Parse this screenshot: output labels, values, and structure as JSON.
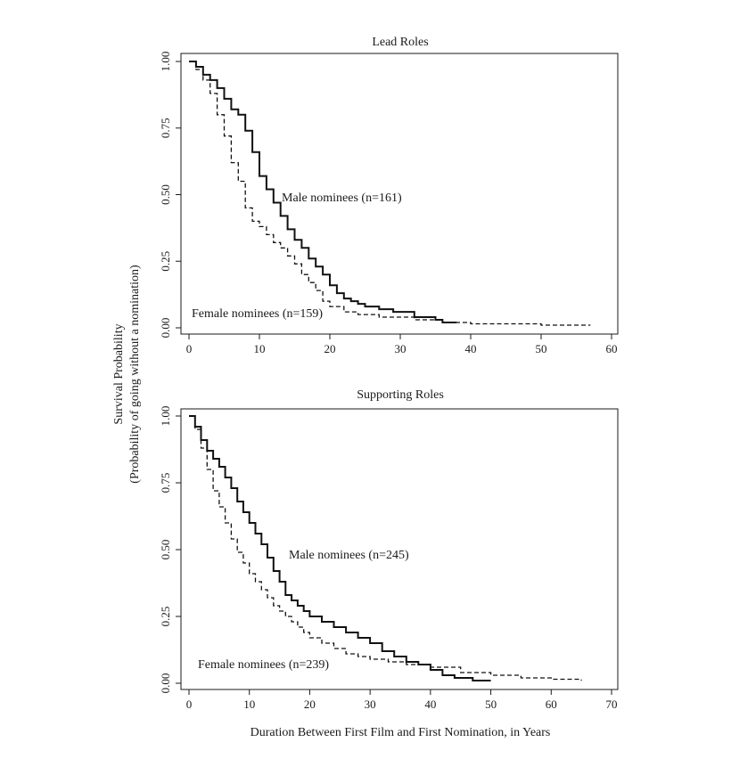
{
  "figure": {
    "ylabel_line1": "Survival Probability",
    "ylabel_line2": "(Probability of going without a nomination)",
    "xlabel": "Duration Between First Film and First Nomination, in Years"
  },
  "chart_data": [
    {
      "type": "line",
      "step": true,
      "title": "Lead Roles",
      "xlim": [
        0,
        60
      ],
      "ylim": [
        0,
        1
      ],
      "xticks": [
        0,
        10,
        20,
        30,
        40,
        50,
        60
      ],
      "xtick_labels": [
        "0",
        "10",
        "20",
        "30",
        "40",
        "50",
        "60"
      ],
      "yticks": [
        0,
        0.25,
        0.5,
        0.75,
        1
      ],
      "ytick_labels": [
        "0.00",
        "0.25",
        "0.50",
        "0.75",
        "1.00"
      ],
      "series": [
        {
          "name": "Male nominees (n=161)",
          "style": "solid-thick",
          "x": [
            0,
            1,
            2,
            3,
            4,
            5,
            6,
            7,
            8,
            9,
            10,
            11,
            12,
            13,
            14,
            15,
            16,
            17,
            18,
            19,
            20,
            21,
            22,
            23,
            24,
            25,
            27,
            29,
            32,
            35,
            36,
            38
          ],
          "y": [
            1.0,
            0.98,
            0.95,
            0.93,
            0.9,
            0.86,
            0.82,
            0.8,
            0.74,
            0.66,
            0.57,
            0.52,
            0.47,
            0.42,
            0.37,
            0.33,
            0.3,
            0.26,
            0.23,
            0.2,
            0.16,
            0.13,
            0.11,
            0.1,
            0.09,
            0.08,
            0.07,
            0.06,
            0.04,
            0.03,
            0.02,
            0.02
          ]
        },
        {
          "name": "Female nominees (n=159)",
          "style": "dashed",
          "x": [
            0,
            1,
            2,
            3,
            4,
            5,
            6,
            7,
            8,
            9,
            10,
            11,
            12,
            13,
            14,
            15,
            16,
            17,
            18,
            19,
            20,
            22,
            24,
            27,
            32,
            36,
            40,
            45,
            50,
            56,
            57
          ],
          "y": [
            1.0,
            0.97,
            0.93,
            0.88,
            0.8,
            0.72,
            0.62,
            0.55,
            0.45,
            0.4,
            0.38,
            0.35,
            0.32,
            0.3,
            0.27,
            0.24,
            0.2,
            0.17,
            0.14,
            0.1,
            0.08,
            0.06,
            0.05,
            0.04,
            0.03,
            0.02,
            0.015,
            0.015,
            0.01,
            0.01,
            0.01
          ]
        }
      ],
      "annotations": [
        {
          "text": "Male nominees (n=161)",
          "x": 13,
          "y": 0.5
        },
        {
          "text": "Female nominees (n=159)",
          "x": 0,
          "y": 0.07
        }
      ]
    },
    {
      "type": "line",
      "step": true,
      "title": "Supporting Roles",
      "xlim": [
        0,
        70
      ],
      "ylim": [
        0,
        1
      ],
      "xticks": [
        0,
        10,
        20,
        30,
        40,
        50,
        60,
        70
      ],
      "xtick_labels": [
        "0",
        "10",
        "20",
        "30",
        "40",
        "50",
        "60",
        "70"
      ],
      "yticks": [
        0,
        0.25,
        0.5,
        0.75,
        1
      ],
      "ytick_labels": [
        "0.00",
        "0.25",
        "0.50",
        "0.75",
        "1.00"
      ],
      "series": [
        {
          "name": "Male nominees (n=245)",
          "style": "solid-thick",
          "x": [
            0,
            1,
            2,
            3,
            4,
            5,
            6,
            7,
            8,
            9,
            10,
            11,
            12,
            13,
            14,
            15,
            16,
            17,
            18,
            19,
            20,
            22,
            24,
            26,
            28,
            30,
            32,
            34,
            36,
            38,
            40,
            42,
            44,
            47,
            50
          ],
          "y": [
            1.0,
            0.96,
            0.91,
            0.87,
            0.84,
            0.81,
            0.77,
            0.73,
            0.68,
            0.64,
            0.6,
            0.56,
            0.52,
            0.47,
            0.42,
            0.38,
            0.33,
            0.31,
            0.29,
            0.27,
            0.25,
            0.23,
            0.21,
            0.19,
            0.17,
            0.15,
            0.12,
            0.1,
            0.08,
            0.07,
            0.05,
            0.03,
            0.02,
            0.01,
            0.01
          ]
        },
        {
          "name": "Female nominees (n=239)",
          "style": "dashed",
          "x": [
            0,
            1,
            2,
            3,
            4,
            5,
            6,
            7,
            8,
            9,
            10,
            11,
            12,
            13,
            14,
            15,
            16,
            17,
            18,
            19,
            20,
            22,
            24,
            26,
            28,
            30,
            33,
            36,
            40,
            45,
            50,
            55,
            60,
            65
          ],
          "y": [
            1.0,
            0.95,
            0.88,
            0.8,
            0.72,
            0.66,
            0.6,
            0.54,
            0.49,
            0.45,
            0.41,
            0.38,
            0.35,
            0.32,
            0.29,
            0.27,
            0.25,
            0.23,
            0.21,
            0.19,
            0.17,
            0.15,
            0.13,
            0.11,
            0.1,
            0.09,
            0.08,
            0.07,
            0.06,
            0.04,
            0.03,
            0.02,
            0.015,
            0.01
          ]
        }
      ],
      "annotations": [
        {
          "text": "Male nominees (n=245)",
          "x": 16,
          "y": 0.49
        },
        {
          "text": "Female nominees (n=239)",
          "x": 1,
          "y": 0.09
        }
      ]
    }
  ]
}
